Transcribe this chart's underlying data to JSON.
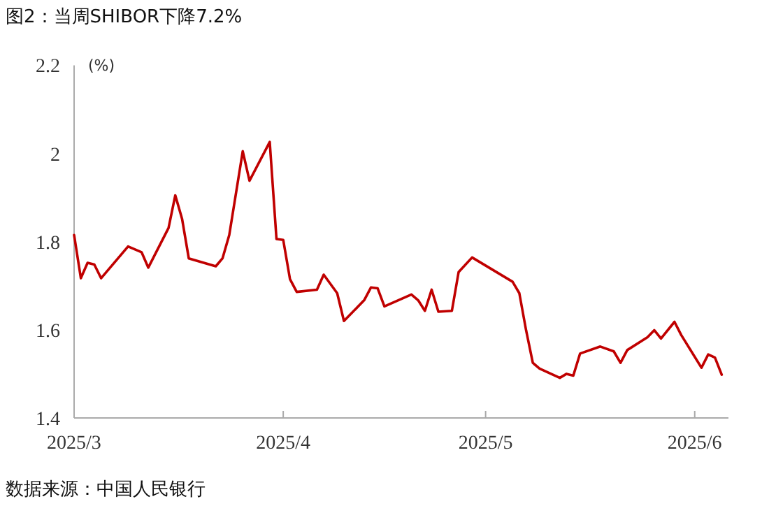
{
  "chart_data": {
    "type": "line",
    "title": "图2：当周SHIBOR下降7.2%",
    "ylabel": "(%)",
    "annotations": [
      "数据来源：中国人民银行"
    ],
    "x": [
      "2025-03-01",
      "2025-03-02",
      "2025-03-03",
      "2025-03-04",
      "2025-03-05",
      "2025-03-09",
      "2025-03-11",
      "2025-03-12",
      "2025-03-15",
      "2025-03-16",
      "2025-03-17",
      "2025-03-18",
      "2025-03-22",
      "2025-03-23",
      "2025-03-24",
      "2025-03-26",
      "2025-03-27",
      "2025-03-30",
      "2025-03-31",
      "2025-04-01",
      "2025-04-02",
      "2025-04-03",
      "2025-04-06",
      "2025-04-07",
      "2025-04-08",
      "2025-04-09",
      "2025-04-10",
      "2025-04-13",
      "2025-04-14",
      "2025-04-15",
      "2025-04-16",
      "2025-04-20",
      "2025-04-21",
      "2025-04-22",
      "2025-04-23",
      "2025-04-24",
      "2025-04-26",
      "2025-04-27",
      "2025-04-29",
      "2025-05-05",
      "2025-05-06",
      "2025-05-07",
      "2025-05-08",
      "2025-05-09",
      "2025-05-12",
      "2025-05-13",
      "2025-05-14",
      "2025-05-15",
      "2025-05-18",
      "2025-05-20",
      "2025-05-21",
      "2025-05-22",
      "2025-05-25",
      "2025-05-26",
      "2025-05-27",
      "2025-05-29",
      "2025-05-30",
      "2025-06-02",
      "2025-06-03",
      "2025-06-04",
      "2025-06-05"
    ],
    "series": [
      {
        "color": "#c00000",
        "values": [
          1.815,
          1.717,
          1.752,
          1.748,
          1.717,
          1.789,
          1.776,
          1.741,
          1.831,
          1.905,
          1.852,
          1.762,
          1.744,
          1.762,
          1.815,
          2.005,
          1.938,
          2.026,
          1.806,
          1.804,
          1.715,
          1.686,
          1.691,
          1.725,
          1.704,
          1.683,
          1.62,
          1.667,
          1.696,
          1.694,
          1.653,
          1.68,
          1.667,
          1.643,
          1.691,
          1.641,
          1.643,
          1.731,
          1.764,
          1.709,
          1.683,
          1.599,
          1.525,
          1.512,
          1.491,
          1.5,
          1.496,
          1.546,
          1.562,
          1.551,
          1.525,
          1.554,
          1.583,
          1.599,
          1.58,
          1.618,
          1.588,
          1.514,
          1.544,
          1.537,
          1.498
        ]
      }
    ],
    "xlim": [
      "2025-03-01",
      "2025-06-06"
    ],
    "xticks": [
      {
        "value": "2025-03-01",
        "label": "2025/3"
      },
      {
        "value": "2025-04-01",
        "label": "2025/4"
      },
      {
        "value": "2025-05-01",
        "label": "2025/5"
      },
      {
        "value": "2025-06-01",
        "label": "2025/6"
      }
    ],
    "ylim": [
      1.4,
      2.2
    ],
    "yticks": [
      1.4,
      1.6,
      1.8,
      2,
      2.2
    ],
    "grid": false
  }
}
